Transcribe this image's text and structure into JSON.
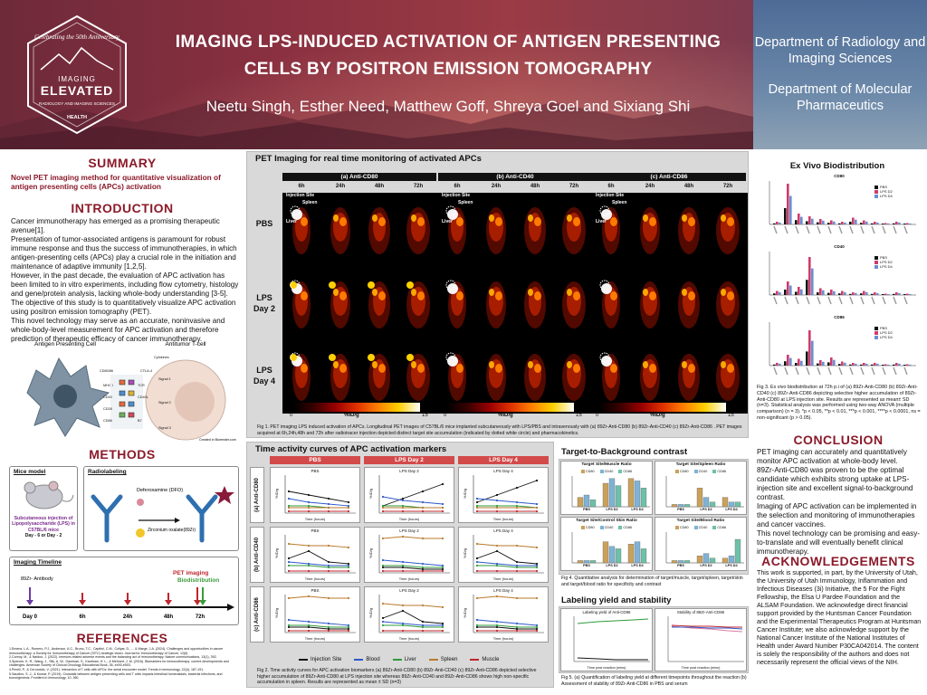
{
  "header": {
    "logo": {
      "line1": "Celebrating the 50th Anniversary",
      "line2": "IMAGING",
      "line3": "ELEVATED",
      "line4": "RADIOLOGY AND IMAGING SCIENCES",
      "line5": "HEALTH"
    },
    "title_line1": "IMAGING LPS-INDUCED ACTIVATION OF ANTIGEN PRESENTING",
    "title_line2": "CELLS BY POSITRON EMISSION TOMOGRAPHY",
    "authors": "Neetu Singh, Esther Need, Matthew Goff, Shreya Goel and Sixiang Shi",
    "dept1": "Department of Radiology and Imaging Sciences",
    "dept2": "Department of Molecular Pharmaceutics"
  },
  "summary": {
    "heading": "SUMMARY",
    "text": "Novel PET imaging method for quantitative visualization of antigen presenting cells (APCs) activation"
  },
  "intro": {
    "heading": "INTRODUCTION",
    "p1": "Cancer immunotherapy has emerged as a promising therapeutic avenue[1].",
    "p2": "Presentation of tumor-associated antigens is paramount for robust immune response and thus the success of immunotherapies, in which antigen-presenting cells (APCs) play a crucial role in the initiation and maintenance of adaptive immunity [1,2,5].",
    "p3": "However, in the past decade, the evaluation of APC activation has been limited to in vitro experiments, including flow cytometry, histology and gene/protein analysis, lacking whole-body understanding [3-5].",
    "p4": "The objective of this study is to quantitatively visualize APC activation using positron emission tomography (PET).",
    "p5": "This novel technology may serve as an accurate, noninvasive and whole-body-level measurement for APC activation and therefore prediction of therapeutic efficacy of cancer immunotherapy."
  },
  "cell_diagram": {
    "apc": "Antigen Presenting Cell",
    "tcell": "Antitumor T-cell",
    "labels": [
      "Cytokines",
      "CD80/86",
      "CTLA-4",
      "MHC I",
      "TCR",
      "CD40",
      "CD40L",
      "CD28",
      "CD86",
      "B7",
      "Signal 1",
      "Signal 2",
      "Signal 3"
    ],
    "credit": "Created in Biorender.com"
  },
  "methods": {
    "heading": "METHODS",
    "mice_title": "Mice model",
    "mice_text": "Subcutaneous injection of Lipopolysaccharide (LPS) in C57BL/6 mice",
    "mice_days": "Day - 6 or Day - 2",
    "radio_title": "Radiolabeling",
    "dfo": "Deferoxamine (DFO)",
    "zr": "Zirconium oxalate(89Zr)",
    "timeline_title": "Imaging Timeline",
    "antibody": "89Zr- Antibody",
    "pet": "PET imaging",
    "bio": "Biodistribution",
    "days": [
      "Day 0",
      "6h",
      "24h",
      "48h",
      "72h"
    ]
  },
  "references": {
    "heading": "REFERENCES",
    "items": [
      "1.Emens, L.A., Romero, P.J., Anderson, A.C., Bruno, T.C., Capitini, C.M., Collyar, D., ... & Marge, J.A. (2024). Challenges and opportunities in cancer immunotherapy: a Society for Immunotherapy of Cancer (SITC) strategic vision. Journal for Immunotherapy of Cancer, 12(6).",
      "2.Conroy, M., & Naidoo, J. (2022). Immune-related adverse events and the balancing act of immunotherapy. Nature communications, 13(1), 392.",
      "3.Spencer, K. R., Wang, J., Silk, A. W., Ganesan, S., Kaufman, H. L., & Mehnert, J. M. (2016). Biomarkers for immunotherapy: current developments and challenges. American Society of Clinical Oncology Educational Book, 36, e493-e503.",
      "4.Pinelli, P., & Cerundolo, V. (2021). Interaction of T cells with APCs: the serial encounter model. Trends in immunology, 22(4), 187-191.",
      "5.Saudino, S. J., & Kumar, P. (2019). Crosstalk between antigen presenting cells and T cells impacts intestinal homeostasis, bacterial infections, and tumorigenesis. Frontiers in immunology, 10, 360."
    ]
  },
  "pet": {
    "heading": "PET Imaging for real time monitoring of activated APCs",
    "groups": [
      "(a) Anti-CD80",
      "(b) Anti-CD40",
      "(c) Anti-CD86"
    ],
    "timepoints": [
      "6h",
      "24h",
      "48h",
      "72h"
    ],
    "rows": [
      "PBS",
      "LPS Day 2",
      "LPS Day 4"
    ],
    "row_labels": [
      [
        "PBS"
      ],
      [
        "LPS",
        "Day 2"
      ],
      [
        "LPS",
        "Day 4"
      ]
    ],
    "injection": "Injection Site",
    "spleen": "Spleen",
    "liver": "Liver",
    "scale_min": "0",
    "scale_unit": "%ID/g",
    "scale_max": "15",
    "caption": "Fig 1. PET imaging LPS induced activation of APCs. Longitudinal PET images of C57BL/6 mice implanted subcutaneously with LPS/PBS and intravenously with (a) 89Zr-Anti-CD80 (b) 89Zr-Anti-CD40 (c) 89Zr-Anti-CD86 . PET images acquired at 6h,24h,48h and 72h after radiotracer injection depicted distinct target site accumulation (indicated by dotted white circle) and pharmacokinetics."
  },
  "tac": {
    "heading": "Time activity curves of APC activation markers",
    "col_headers": [
      "PBS",
      "LPS Day 2",
      "LPS Day 4"
    ],
    "row_headers": [
      "(a) Anti-CD80",
      "(b) Anti-CD40",
      "(c) Anti-CD86"
    ],
    "xlabel": "Time (hours)",
    "ylabel": "%ID/g",
    "legend": [
      "Injection Site",
      "Blood",
      "Liver",
      "Spleen",
      "Muscle"
    ],
    "caption": "Fig 2. Time activity curves for APC activation biomarkers (a) 89Zr-Anti-CD80 (b) 89Zr-Anti-CD40 (c) 89Zr-Anti-CD86 depicted selective higher accumulation of 89Zr-Anti-CD80 at LPS injection site whereas 89Zr-Anti-CD40 and 89Zr-Anti-CD86 shows high non-specific accumulation in spleen. Results are represented as mean ± SD (n=3)"
  },
  "tbc": {
    "heading": "Target-to-Background contrast",
    "charts": [
      "Target Site/Muscle Ratio",
      "Target Site/Spleen Ratio",
      "Target Site/Control Skin Ratio",
      "Target Site/Blood Ratio"
    ],
    "legend": [
      "CD80",
      "CD40",
      "CD86"
    ],
    "categories": [
      "PBS",
      "LPS D2",
      "LPS D4"
    ],
    "caption": "Fig 4. Quantitative analysis for determination of target/muscle, target/spleen, target/skin and target/blood ratio for specificity and contrast"
  },
  "labeling": {
    "heading": "Labeling yield and stability",
    "a_title": "Labeling yield of Anti-CD86",
    "b_title": "Stability of 89Zr-Anti-CD86",
    "xlabel": "Time post reaction (mins)",
    "ylabel": "Percentage (%)",
    "caption": "Fig 5. (a) Quantification of labeling yield at different timepoints throughout the reaction (b) Assessment of stability of 89Zr-Anti-CD86 in PBS and serum"
  },
  "biodist": {
    "heading": "Ex Vivo Biodistribution",
    "charts": [
      "CD80",
      "CD40",
      "CD86"
    ],
    "legend": [
      "PBS",
      "LPS D2",
      "LPS D4"
    ],
    "caption": "Fig 3. Ex vivo biodistribution at 72h p.i of (a) 89Zr-Anti-CD80 (b) 89Zr-Anti-CD40 (c) 89Zr-Anti-CD86 depicting selective higher accumulation of 89Zr-Anti-CD80 at LPS injection site. Results are represented as mean± SD (n=3). Statistical analysis was performed using two-way ANOVA (multiple comparison) (n = 3). *p < 0.05, **p < 0.01, ***p < 0.001, ****p < 0.0001, ns = non-significant (p > 0.05)."
  },
  "conclusion": {
    "heading": "CONCLUSION",
    "p1": "PET imaging can accurately and quantitatively monitor APC activation at whole-body level.",
    "p2": "89Zr-Anti-CD80 was proven to be the optimal candidate which exhibits strong uptake at LPS-injection site and excellent signal-to-background contrast.",
    "p3": "Imaging of APC activation can be implemented in the selection and monitoring of immunotherapies and cancer vaccines.",
    "p4": "This novel technology can be promising and easy-to-translate and will eventually benefit clinical immunotherapy."
  },
  "ack": {
    "heading": "ACKNOWLEDGEMENTS",
    "text": "This work is supported, in part, by the University of Utah, the University of Utah Immunology, Inflammation and Infectious Diseases (3i) Initiative, the 5 For the Fight Fellowship, the Elsa U Pardee Foundation and the ALSAM Foundation. We acknowledge direct financial support provided by the Huntsman Cancer Foundation and the Experimental Therapeutics Program at Huntsman Cancer Institute; we also acknowledge support by the National Cancer Institute of the National Institutes of Health under Award Number P30CA042014. The content is solely the responsibility of the authors and does not necessarily represent the official views of the NIH."
  }
}
